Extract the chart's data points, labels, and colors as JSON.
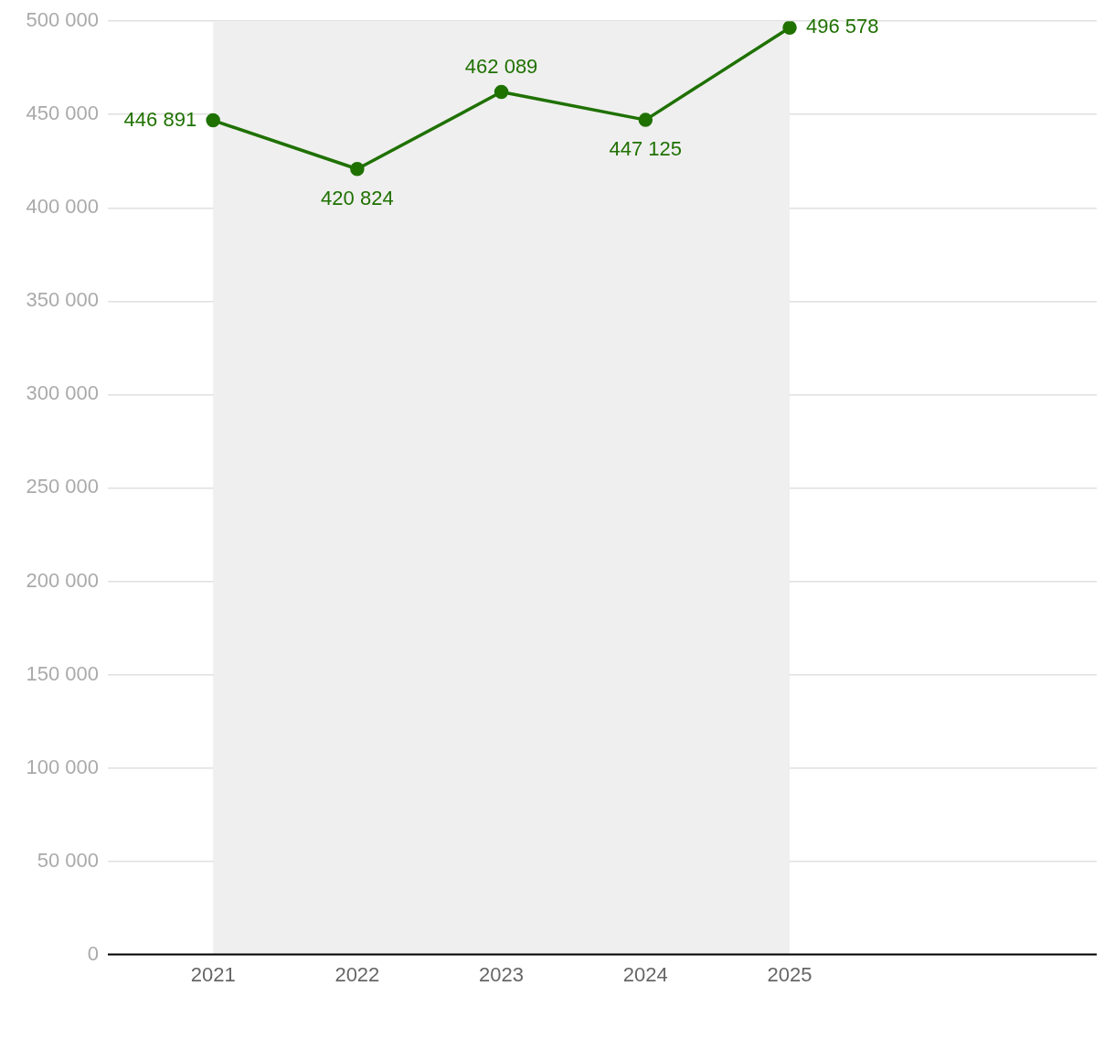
{
  "chart_data": {
    "type": "line",
    "x": [
      2021,
      2022,
      2023,
      2024,
      2025
    ],
    "series": [
      {
        "color": "#1f7100",
        "values": [
          446891,
          420824,
          462089,
          447125,
          496578
        ],
        "value_labels": [
          "446 891",
          "420 824",
          "462 089",
          "447 125",
          "496 578"
        ]
      }
    ],
    "xlim": [
      2020.27,
      2027.13
    ],
    "xticks": [
      2021,
      2022,
      2023,
      2024,
      2025
    ],
    "ylim": [
      0,
      500000
    ],
    "yticks": [
      {
        "value": 0,
        "label": "0"
      },
      {
        "value": 50000,
        "label": "50 000"
      },
      {
        "value": 100000,
        "label": "100 000"
      },
      {
        "value": 150000,
        "label": "150 000"
      },
      {
        "value": 200000,
        "label": "200 000"
      },
      {
        "value": 250000,
        "label": "250 000"
      },
      {
        "value": 300000,
        "label": "300 000"
      },
      {
        "value": 350000,
        "label": "350 000"
      },
      {
        "value": 400000,
        "label": "400 000"
      },
      {
        "value": 450000,
        "label": "450 000"
      },
      {
        "value": 500000,
        "label": "500 000"
      }
    ],
    "bands": [
      {
        "axis": "x",
        "from": 2021,
        "to": 2025,
        "color": "#efefef"
      }
    ],
    "grid": "y",
    "marker": "circle",
    "line_style": "solid",
    "legend": false
  }
}
